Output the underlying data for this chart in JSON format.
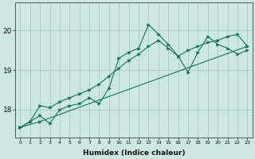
{
  "xlabel": "Humidex (Indice chaleur)",
  "ylabel": "",
  "xlim": [
    -0.5,
    23.5
  ],
  "ylim": [
    17.3,
    20.7
  ],
  "yticks": [
    18,
    19,
    20
  ],
  "xticks": [
    0,
    1,
    2,
    3,
    4,
    5,
    6,
    7,
    8,
    9,
    10,
    11,
    12,
    13,
    14,
    15,
    16,
    17,
    18,
    19,
    20,
    21,
    22,
    23
  ],
  "bg_color": "#cce8e0",
  "line_color": "#1a7060",
  "grid_color": "#a8ccc4",
  "series": [
    {
      "x": [
        0,
        1,
        2,
        3,
        4,
        5,
        6,
        7,
        8,
        9,
        10,
        11,
        12,
        13,
        14,
        15,
        16,
        17,
        18,
        19,
        20,
        21,
        22,
        23
      ],
      "y": [
        17.55,
        17.7,
        17.85,
        17.65,
        18.0,
        18.1,
        18.15,
        18.3,
        18.15,
        18.55,
        19.3,
        19.45,
        19.55,
        20.15,
        19.9,
        19.65,
        19.35,
        18.95,
        19.45,
        19.85,
        19.65,
        19.55,
        19.4,
        19.5
      ]
    },
    {
      "x": [
        0,
        1,
        2,
        3,
        4,
        5,
        6,
        7,
        8,
        9,
        10,
        11,
        12,
        13,
        14,
        15,
        16,
        17,
        18,
        19,
        20,
        21,
        22,
        23
      ],
      "y": [
        17.55,
        17.7,
        18.1,
        18.05,
        18.2,
        18.3,
        18.4,
        18.5,
        18.65,
        18.85,
        19.05,
        19.25,
        19.4,
        19.6,
        19.75,
        19.55,
        19.35,
        19.5,
        19.6,
        19.7,
        19.75,
        19.85,
        19.9,
        19.6
      ]
    },
    {
      "x": [
        0,
        2,
        23
      ],
      "y": [
        17.55,
        17.7,
        19.6
      ]
    }
  ]
}
